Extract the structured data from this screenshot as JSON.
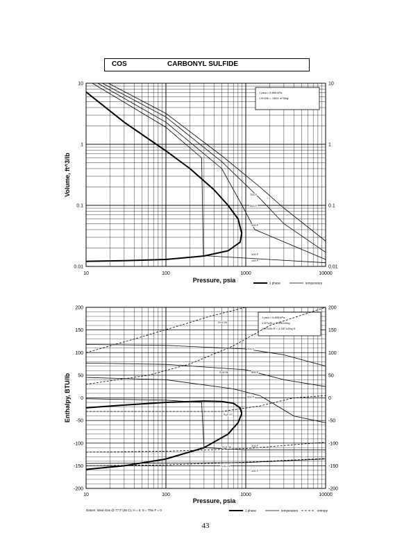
{
  "header": {
    "code": "COS",
    "name": "CARBONYL SULFIDE"
  },
  "page_number": "43",
  "colors": {
    "ink": "#000000",
    "paper": "#ffffff"
  },
  "chart_data": [
    {
      "type": "line",
      "title": "",
      "xlabel": "Pressure,  psia",
      "ylabel": "Volume, ft^3/lb",
      "x_scale": "log",
      "y_scale": "log",
      "xlim": [
        10,
        10000
      ],
      "ylim": [
        0.01,
        10
      ],
      "x_tick_labels": [
        "10",
        "100",
        "1000",
        "10000"
      ],
      "y_tick_labels": [
        "10",
        "1",
        "0.1",
        "0.01"
      ],
      "info_lines": [
        "1 psia = 6.895 kPa",
        "1 ft^3/lb = .0624 m^3/kg"
      ],
      "legend": {
        "position": "below-right",
        "entries": [
          "2 phase",
          "temperature"
        ]
      },
      "two_phase": {
        "liquid": [
          [
            10,
            0.0121
          ],
          [
            30,
            0.0124
          ],
          [
            100,
            0.013
          ],
          [
            300,
            0.0148
          ],
          [
            600,
            0.018
          ],
          [
            850,
            0.025
          ],
          [
            890,
            0.035
          ]
        ],
        "vapor": [
          [
            10,
            7.2
          ],
          [
            30,
            2.3
          ],
          [
            100,
            0.78
          ],
          [
            200,
            0.4
          ],
          [
            400,
            0.18
          ],
          [
            600,
            0.1
          ],
          [
            800,
            0.06
          ],
          [
            890,
            0.035
          ]
        ]
      },
      "series": [
        {
          "name": "100 F",
          "points": [
            [
              12,
              10
            ],
            [
              100,
              1.9
            ],
            [
              280,
              0.6
            ],
            [
              295,
              0.015
            ],
            [
              10000,
              0.0115
            ]
          ]
        },
        {
          "name": "200 F",
          "points": [
            [
              14,
              10
            ],
            [
              100,
              2.3
            ],
            [
              500,
              0.4
            ],
            [
              900,
              0.1
            ],
            [
              1300,
              0.04
            ],
            [
              10000,
              0.013
            ]
          ]
        },
        {
          "name": "500 F",
          "points": [
            [
              16,
              10
            ],
            [
              100,
              2.8
            ],
            [
              500,
              0.52
            ],
            [
              1500,
              0.13
            ],
            [
              3000,
              0.05
            ],
            [
              10000,
              0.017
            ]
          ]
        },
        {
          "name": "700 F",
          "points": [
            [
              19,
              10
            ],
            [
              100,
              3.2
            ],
            [
              500,
              0.65
            ],
            [
              1500,
              0.2
            ],
            [
              3000,
              0.09
            ],
            [
              10000,
              0.026
            ]
          ]
        }
      ],
      "annotations": [
        "700 F",
        "500 F",
        "300 F",
        "100 F",
        "100 F"
      ]
    },
    {
      "type": "line",
      "title": "",
      "xlabel": "Pressure,  psia",
      "ylabel": "Enthalpy, BTU/lb",
      "x_scale": "log",
      "y_scale": "linear",
      "xlim": [
        10,
        10000
      ],
      "ylim": [
        -200,
        200
      ],
      "x_tick_labels": [
        "10",
        "100",
        "1000",
        "10000"
      ],
      "y_tick_labels": [
        "200",
        "150",
        "100",
        "50",
        "0",
        "-50",
        "-100",
        "-150",
        "-200"
      ],
      "info_lines": [
        "1 psia = 6.895 kPa",
        "1 BTU/lb = 2.326 kJ/kg",
        "1 BTU/lb R = 4.187 kJ/kg K"
      ],
      "legend": {
        "position": "below-right",
        "entries": [
          "2 phase",
          "temperature",
          "entropy"
        ]
      },
      "footnote": "Datum: Ideal Gas @ 77 F (25 C), H = 0, S = This F = 0",
      "two_phase": {
        "liquid": [
          [
            10,
            -158
          ],
          [
            30,
            -150
          ],
          [
            100,
            -135
          ],
          [
            300,
            -110
          ],
          [
            600,
            -80
          ],
          [
            800,
            -55
          ],
          [
            890,
            -35
          ]
        ],
        "vapor": [
          [
            10,
            -22
          ],
          [
            30,
            -16
          ],
          [
            100,
            -10
          ],
          [
            300,
            -7
          ],
          [
            500,
            -8
          ],
          [
            700,
            -12
          ],
          [
            850,
            -22
          ],
          [
            890,
            -35
          ]
        ]
      },
      "series": [
        {
          "name": "700 F",
          "points": [
            [
              10,
              118
            ],
            [
              100,
              116
            ],
            [
              1000,
              108
            ],
            [
              3000,
              95
            ],
            [
              10000,
              70
            ]
          ]
        },
        {
          "name": "500 F",
          "points": [
            [
              10,
              77
            ],
            [
              100,
              74
            ],
            [
              1000,
              62
            ],
            [
              3000,
              40
            ],
            [
              10000,
              25
            ]
          ]
        },
        {
          "name": "300 F",
          "points": [
            [
              10,
              45
            ],
            [
              100,
              40
            ],
            [
              700,
              20
            ],
            [
              1500,
              5
            ],
            [
              4000,
              -40
            ],
            [
              10000,
              -55
            ]
          ]
        },
        {
          "name": "100 F",
          "points": [
            [
              10,
              -2
            ],
            [
              100,
              -5
            ],
            [
              280,
              -10
            ],
            [
              300,
              -110
            ],
            [
              1000,
              -115
            ],
            [
              10000,
              -115
            ]
          ]
        },
        {
          "name": "100 F",
          "points": [
            [
              10,
              -145
            ],
            [
              1000,
              -143
            ],
            [
              10000,
              -135
            ]
          ]
        },
        {
          "name": "S=0.36",
          "dashed": true,
          "points": [
            [
              10,
              -120
            ],
            [
              100,
              -118
            ],
            [
              1000,
              -112
            ],
            [
              10000,
              -98
            ]
          ]
        },
        {
          "name": "S=0.25",
          "dashed": true,
          "points": [
            [
              10,
              -150
            ],
            [
              100,
              -148
            ],
            [
              1000,
              -142
            ],
            [
              10000,
              -134
            ]
          ]
        },
        {
          "name": "S=0.17",
          "dashed": true,
          "points": [
            [
              10,
              -30
            ],
            [
              100,
              -30
            ],
            [
              500,
              -30
            ],
            [
              1500,
              -18
            ],
            [
              4000,
              0
            ],
            [
              10000,
              5
            ]
          ]
        },
        {
          "name": "S=0.06",
          "dashed": true,
          "points": [
            [
              10,
              30
            ],
            [
              60,
              50
            ],
            [
              200,
              75
            ],
            [
              700,
              115
            ],
            [
              2000,
              160
            ],
            [
              10000,
              200
            ]
          ]
        },
        {
          "name": "S=0.26",
          "dashed": true,
          "points": [
            [
              10,
              100
            ],
            [
              40,
              130
            ],
            [
              150,
              160
            ],
            [
              350,
              180
            ],
            [
              1000,
              200
            ]
          ]
        }
      ],
      "annotations": [
        "S=0.26",
        "700 F",
        "500 F",
        "S=0.06",
        "300 F",
        "S=0.17",
        "100 F",
        "S=0.36",
        "S=0.25",
        "100 F"
      ]
    }
  ]
}
